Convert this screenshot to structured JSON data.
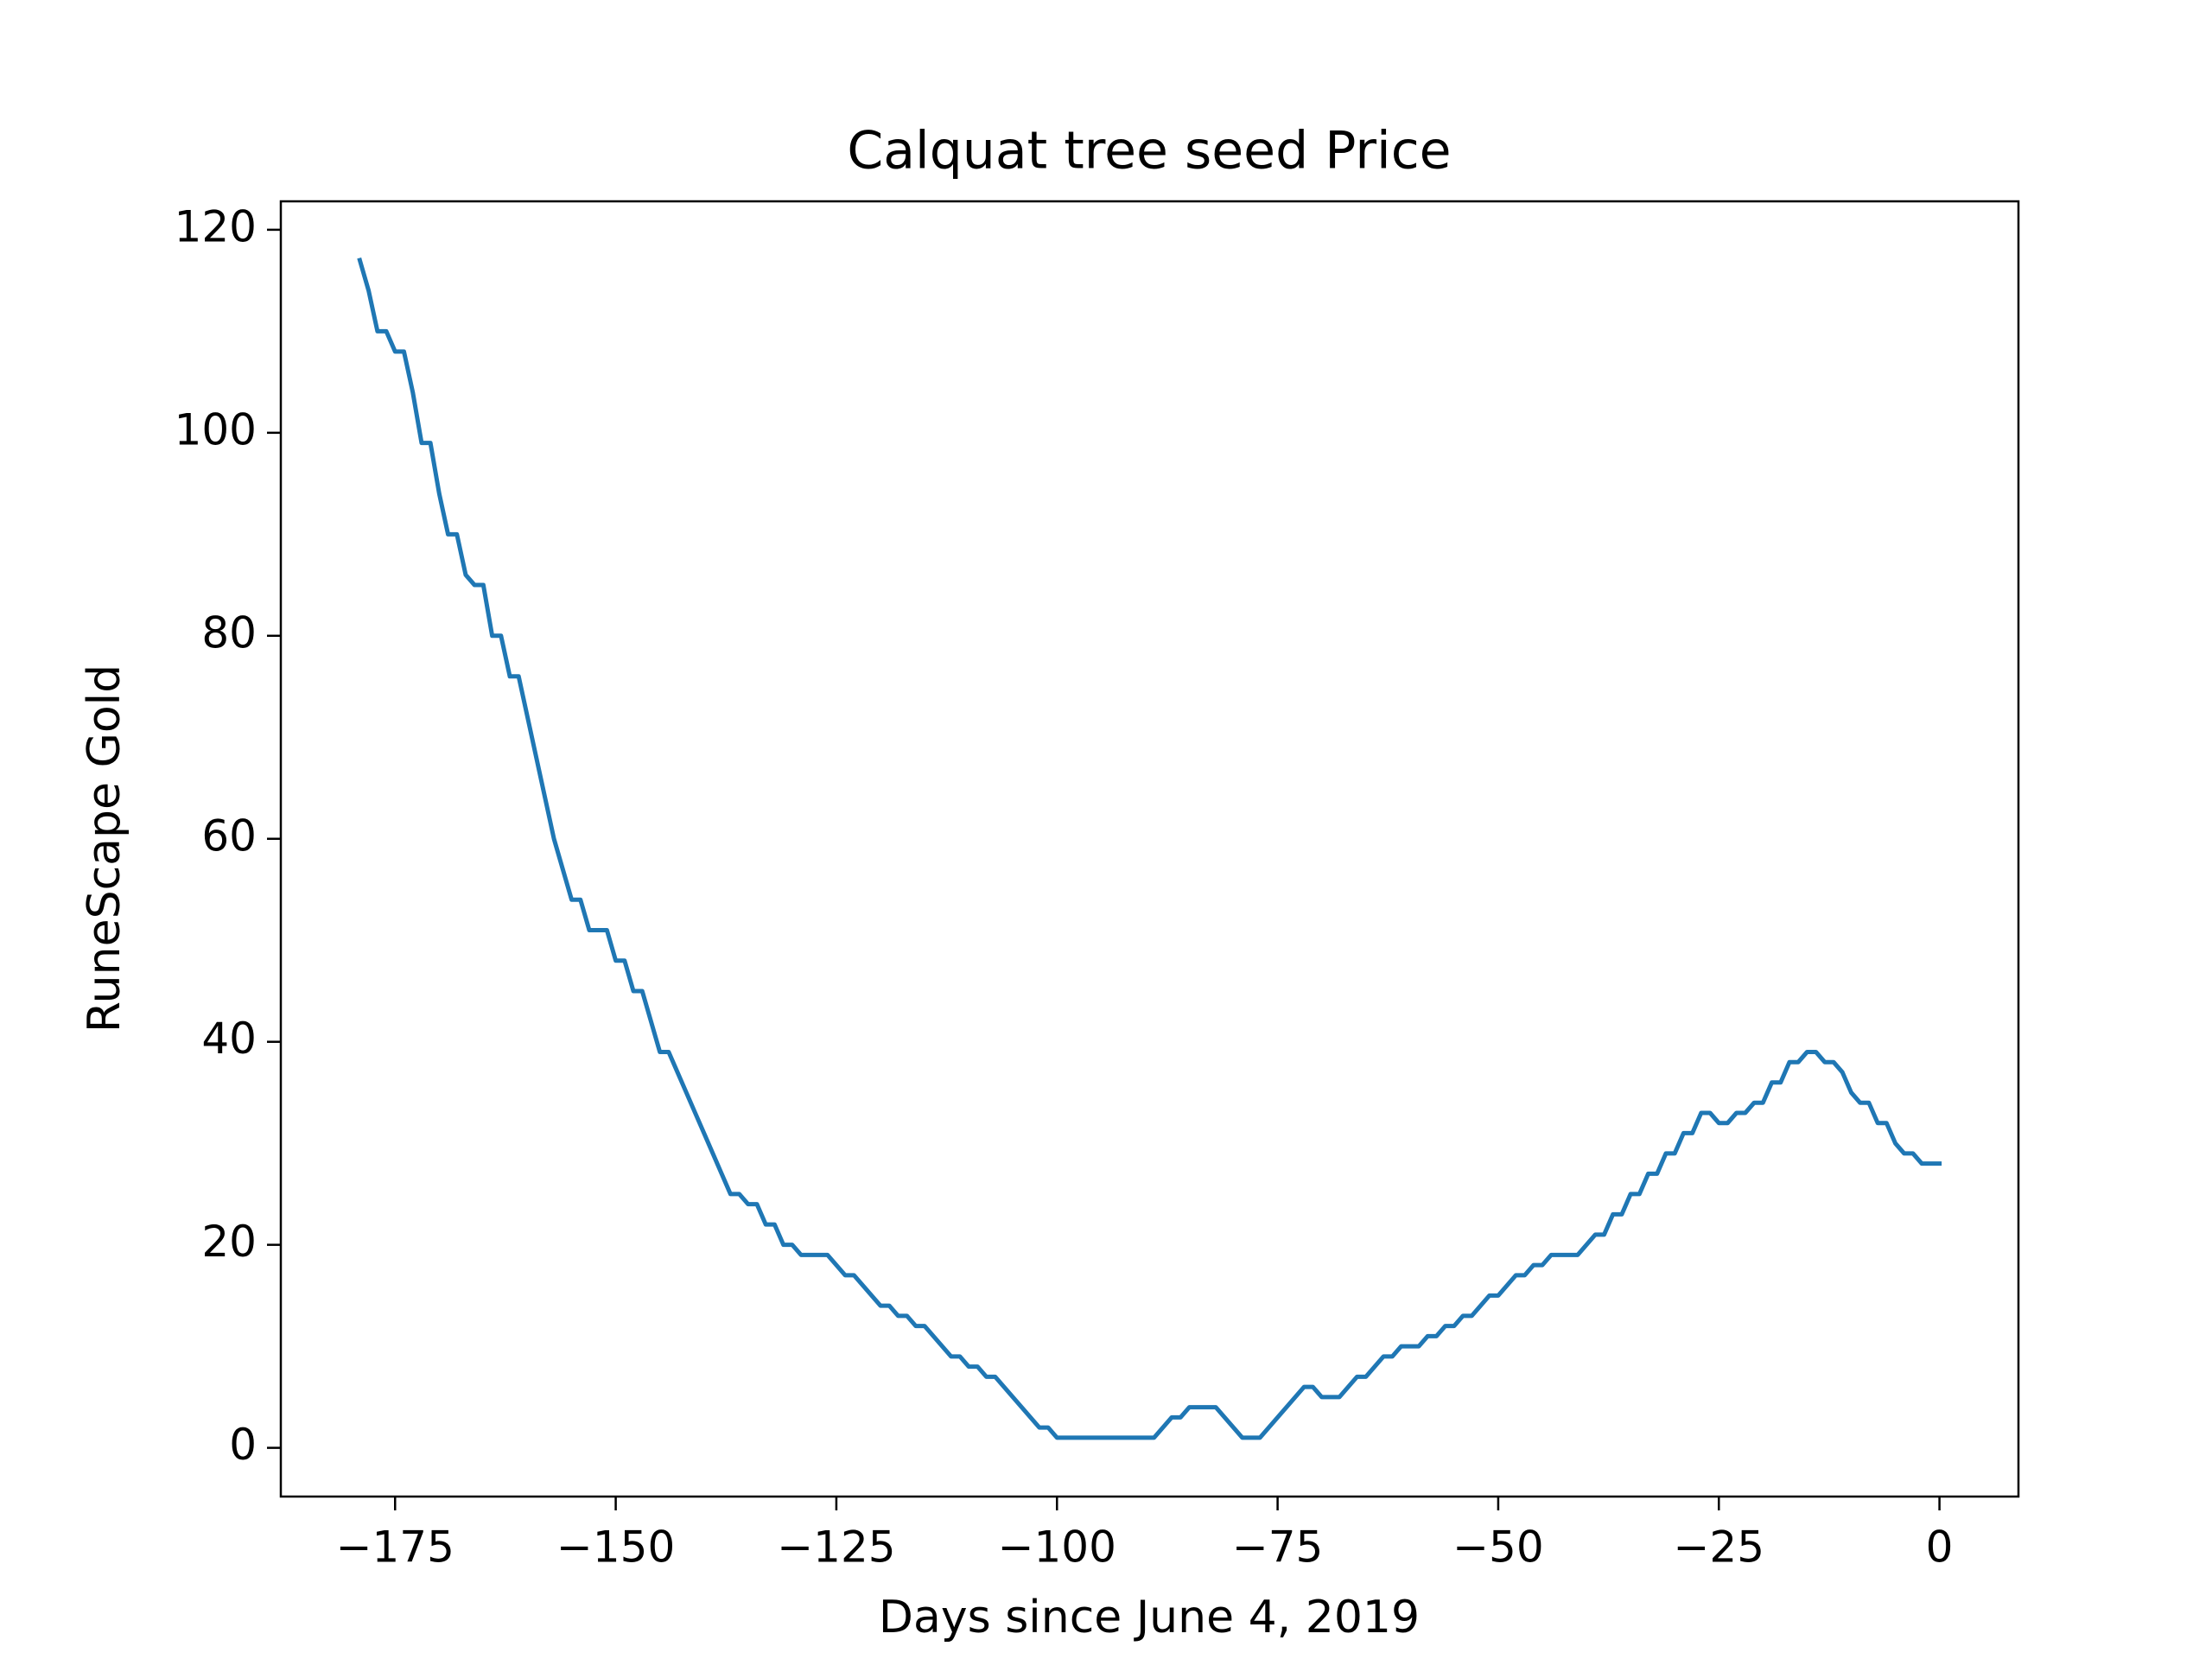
{
  "chart_data": {
    "type": "line",
    "title": "Calquat tree seed Price",
    "xlabel": "Days since June 4, 2019",
    "ylabel": "RuneScape Gold",
    "x": [
      -179,
      -178,
      -177,
      -176,
      -175,
      -174,
      -173,
      -172,
      -171,
      -170,
      -169,
      -168,
      -167,
      -166,
      -165,
      -164,
      -163,
      -162,
      -161,
      -160,
      -159,
      -158,
      -157,
      -156,
      -155,
      -154,
      -153,
      -152,
      -151,
      -150,
      -149,
      -148,
      -147,
      -146,
      -145,
      -144,
      -143,
      -142,
      -141,
      -140,
      -139,
      -138,
      -137,
      -136,
      -135,
      -134,
      -133,
      -132,
      -131,
      -130,
      -129,
      -128,
      -127,
      -126,
      -125,
      -124,
      -123,
      -122,
      -121,
      -120,
      -119,
      -118,
      -117,
      -116,
      -115,
      -114,
      -113,
      -112,
      -111,
      -110,
      -109,
      -108,
      -107,
      -106,
      -105,
      -104,
      -103,
      -102,
      -101,
      -100,
      -99,
      -98,
      -97,
      -96,
      -95,
      -94,
      -93,
      -92,
      -91,
      -90,
      -89,
      -88,
      -87,
      -86,
      -85,
      -84,
      -83,
      -82,
      -81,
      -80,
      -79,
      -78,
      -77,
      -76,
      -75,
      -74,
      -73,
      -72,
      -71,
      -70,
      -69,
      -68,
      -67,
      -66,
      -65,
      -64,
      -63,
      -62,
      -61,
      -60,
      -59,
      -58,
      -57,
      -56,
      -55,
      -54,
      -53,
      -52,
      -51,
      -50,
      -49,
      -48,
      -47,
      -46,
      -45,
      -44,
      -43,
      -42,
      -41,
      -40,
      -39,
      -38,
      -37,
      -36,
      -35,
      -34,
      -33,
      -32,
      -31,
      -30,
      -29,
      -28,
      -27,
      -26,
      -25,
      -24,
      -23,
      -22,
      -21,
      -20,
      -19,
      -18,
      -17,
      -16,
      -15,
      -14,
      -13,
      -12,
      -11,
      -10,
      -9,
      -8,
      -7,
      -6,
      -5,
      -4,
      -3,
      -2,
      -1,
      0
    ],
    "series": [
      {
        "name": "Calquat tree seed",
        "color": "#1f77b4",
        "values": [
          117,
          114,
          110,
          110,
          108,
          108,
          104,
          99,
          99,
          94,
          90,
          90,
          86,
          85,
          85,
          80,
          80,
          76,
          76,
          72,
          68,
          64,
          60,
          57,
          54,
          54,
          51,
          51,
          51,
          48,
          48,
          45,
          45,
          42,
          39,
          39,
          37,
          35,
          33,
          31,
          29,
          27,
          25,
          25,
          24,
          24,
          22,
          22,
          20,
          20,
          19,
          19,
          19,
          19,
          18,
          17,
          17,
          16,
          15,
          14,
          14,
          13,
          13,
          12,
          12,
          11,
          10,
          9,
          9,
          8,
          8,
          7,
          7,
          6,
          5,
          4,
          3,
          2,
          2,
          1,
          1,
          1,
          1,
          1,
          1,
          1,
          1,
          1,
          1,
          1,
          1,
          2,
          3,
          3,
          4,
          4,
          4,
          4,
          3,
          2,
          1,
          1,
          1,
          2,
          3,
          4,
          5,
          6,
          6,
          5,
          5,
          5,
          6,
          7,
          7,
          8,
          9,
          9,
          10,
          10,
          10,
          11,
          11,
          12,
          12,
          13,
          13,
          14,
          15,
          15,
          16,
          17,
          17,
          18,
          18,
          19,
          19,
          19,
          19,
          20,
          21,
          21,
          23,
          23,
          25,
          25,
          27,
          27,
          29,
          29,
          31,
          31,
          33,
          33,
          32,
          32,
          33,
          33,
          34,
          34,
          36,
          36,
          38,
          38,
          39,
          39,
          38,
          38,
          37,
          35,
          34,
          34,
          32,
          32,
          30,
          29,
          29,
          28,
          28,
          28
        ]
      }
    ],
    "xlim": [
      -187.95,
      8.95
    ],
    "ylim": [
      -4.8,
      122.8
    ],
    "xticks": [
      {
        "value": -175,
        "label": "−175"
      },
      {
        "value": -150,
        "label": "−150"
      },
      {
        "value": -125,
        "label": "−125"
      },
      {
        "value": -100,
        "label": "−100"
      },
      {
        "value": -75,
        "label": "−75"
      },
      {
        "value": -50,
        "label": "−50"
      },
      {
        "value": -25,
        "label": "−25"
      },
      0
    ],
    "yticks": [
      0,
      20,
      40,
      60,
      80,
      100,
      120
    ],
    "grid": false
  }
}
